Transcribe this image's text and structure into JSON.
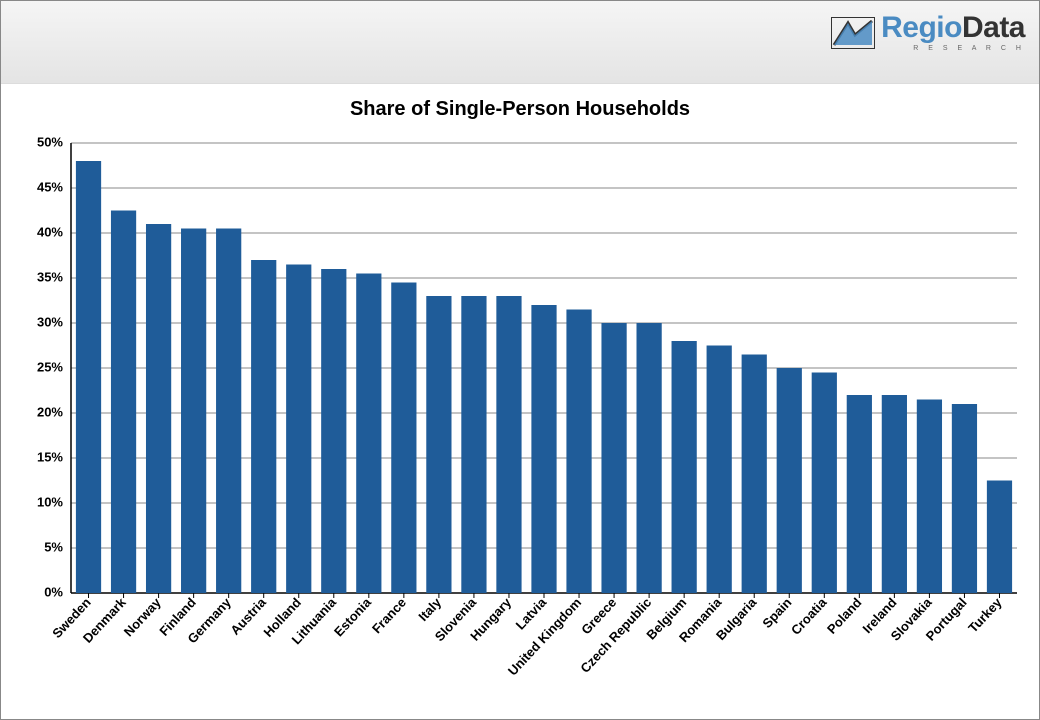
{
  "header": {
    "logo_regio": "Regio",
    "logo_data": "Data",
    "logo_sub": "R E S E A R C H"
  },
  "chart": {
    "type": "bar",
    "title": "Share of Single-Person Households",
    "title_fontsize": 20,
    "title_color": "#000000",
    "categories": [
      "Sweden",
      "Denmark",
      "Norway",
      "Finland",
      "Germany",
      "Austria",
      "Holland",
      "Lithuania",
      "Estonia",
      "France",
      "Italy",
      "Slovenia",
      "Hungary",
      "Latvia",
      "United Kingdom",
      "Greece",
      "Czech Republic",
      "Belgium",
      "Romania",
      "Bulgaria",
      "Spain",
      "Croatia",
      "Poland",
      "Ireland",
      "Slovakia",
      "Portugal",
      "Turkey"
    ],
    "values": [
      48.0,
      42.5,
      41.0,
      40.5,
      40.5,
      37.0,
      36.5,
      36.0,
      35.5,
      34.5,
      33.0,
      33.0,
      33.0,
      32.0,
      31.5,
      30.0,
      30.0,
      28.0,
      27.5,
      26.5,
      25.0,
      24.5,
      22.0,
      22.0,
      21.5,
      21.0,
      12.5
    ],
    "bar_color": "#1f5c99",
    "grid_color": "#888888",
    "axis_color": "#000000",
    "background_color": "#ffffff",
    "ylim": [
      0,
      50
    ],
    "ytick_step": 5,
    "ytick_suffix": "%",
    "label_fontsize": 13,
    "label_fontweight": "bold",
    "bar_width_ratio": 0.72
  }
}
